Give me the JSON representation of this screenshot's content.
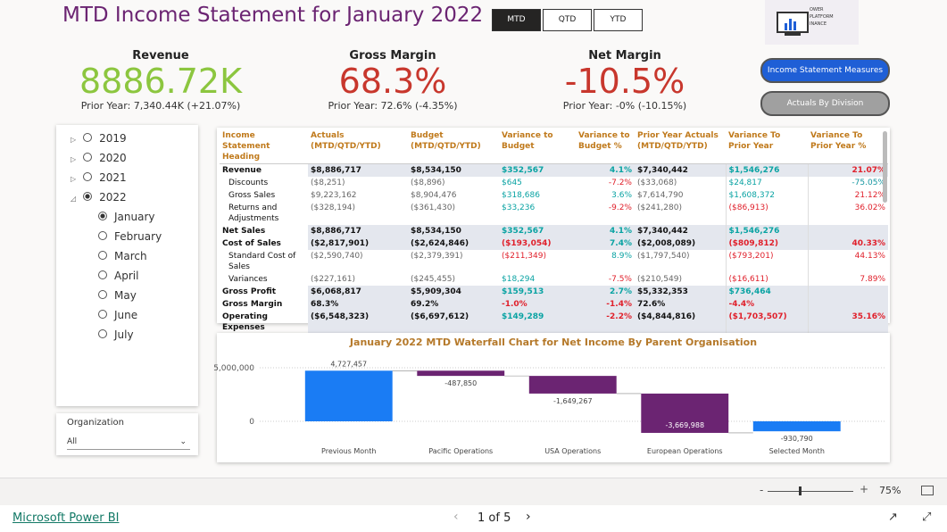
{
  "header": {
    "title": "MTD Income Statement for January 2022"
  },
  "period_buttons": {
    "items": [
      "MTD",
      "QTD",
      "YTD"
    ],
    "active_index": 0
  },
  "logo_text": [
    "OWER",
    "PLATFORM",
    "INANCE"
  ],
  "kpis": [
    {
      "title": "Revenue",
      "value": "8886.72K",
      "prior": "Prior Year: 7,340.44K (+21.07%)",
      "color": "#8cc63f"
    },
    {
      "title": "Gross Margin",
      "value": "68.3%",
      "prior": "Prior Year: 72.6% (-4.35%)",
      "color": "#c8372d"
    },
    {
      "title": "Net Margin",
      "value": "-10.5%",
      "prior": "Prior Year: -0% (-10.15%)",
      "color": "#c8372d"
    }
  ],
  "nav_buttons": [
    {
      "label": "Income Statement Measures",
      "color": "#1f5fd6"
    },
    {
      "label": "Actuals By Division",
      "color": "#a0a0a0"
    }
  ],
  "slicer": {
    "years": [
      "2019",
      "2020",
      "2021",
      "2022"
    ],
    "expanded_index": 3,
    "months": [
      "January",
      "February",
      "March",
      "April",
      "May",
      "June",
      "July"
    ],
    "selected_month_index": 0
  },
  "organization": {
    "title": "Organization",
    "value": "All"
  },
  "table": {
    "columns": [
      "Income Statement Heading",
      "Actuals (MTD/QTD/YTD)",
      "Budget (MTD/QTD/YTD)",
      "Variance to Budget",
      "Variance to Budget %",
      "Prior Year Actuals (MTD/QTD/YTD)",
      "Variance To Prior Year",
      "Variance To Prior Year %"
    ],
    "rows": [
      {
        "bold": true,
        "cells": [
          "Revenue",
          "$8,886,717",
          "$8,534,150",
          "$352,567",
          "4.1%",
          "$7,340,442",
          "$1,546,276",
          "21.07%"
        ]
      },
      {
        "bold": false,
        "cells": [
          "Discounts",
          "($8,251)",
          "($8,896)",
          "$645",
          "-7.2%",
          "($33,068)",
          "$24,817",
          "-75.05%"
        ]
      },
      {
        "bold": false,
        "cells": [
          "Gross Sales",
          "$9,223,162",
          "$8,904,476",
          "$318,686",
          "3.6%",
          "$7,614,790",
          "$1,608,372",
          "21.12%"
        ]
      },
      {
        "bold": false,
        "cells": [
          "Returns and Adjustments",
          "($328,194)",
          "($361,430)",
          "$33,236",
          "-9.2%",
          "($241,280)",
          "($86,913)",
          "36.02%"
        ]
      },
      {
        "bold": true,
        "cells": [
          "Net Sales",
          "$8,886,717",
          "$8,534,150",
          "$352,567",
          "4.1%",
          "$7,340,442",
          "$1,546,276",
          null
        ]
      },
      {
        "bold": true,
        "cells": [
          "Cost of Sales",
          "($2,817,901)",
          "($2,624,846)",
          "($193,054)",
          "7.4%",
          "($2,008,089)",
          "($809,812)",
          "40.33%"
        ]
      },
      {
        "bold": false,
        "cells": [
          "Standard Cost of Sales",
          "($2,590,740)",
          "($2,379,391)",
          "($211,349)",
          "8.9%",
          "($1,797,540)",
          "($793,201)",
          "44.13%"
        ]
      },
      {
        "bold": false,
        "cells": [
          "Variances",
          "($227,161)",
          "($245,455)",
          "$18,294",
          "-7.5%",
          "($210,549)",
          "($16,611)",
          "7.89%"
        ]
      },
      {
        "bold": true,
        "cells": [
          "Gross Profit",
          "$6,068,817",
          "$5,909,304",
          "$159,513",
          "2.7%",
          "$5,332,353",
          "$736,464",
          null
        ]
      },
      {
        "bold": true,
        "cells": [
          "Gross Margin",
          "68.3%",
          "69.2%",
          "-1.0%",
          "-1.4%",
          "72.6%",
          "-4.4%",
          null
        ]
      },
      {
        "bold": true,
        "cells": [
          "Operating Expenses",
          "($6,548,323)",
          "($6,697,612)",
          "$149,289",
          "-2.2%",
          "($4,844,816)",
          "($1,703,507)",
          "35.16%"
        ]
      }
    ]
  },
  "chart_data": {
    "type": "waterfall",
    "title": "January 2022 MTD Waterfall Chart for Net Income By Parent Organisation",
    "categories": [
      "Previous Month",
      "Pacific Operations",
      "USA Operations",
      "European Operations",
      "Selected Month"
    ],
    "values": [
      4727457,
      -487850,
      -1649267,
      -3669988,
      -930790
    ],
    "value_labels": [
      "4,727,457",
      "-487,850",
      "-1,649,267",
      "-3,669,988",
      "-930,790"
    ],
    "increase_color": "#1a7cf4",
    "decrease_color": "#6b2472",
    "total_color": "#1a7cf4",
    "ylim": [
      -2400000,
      7000000
    ],
    "yticks": [
      {
        "value": 5000000,
        "label": "5,000,000"
      },
      0
    ],
    "grid": true
  },
  "footer": {
    "brand": "Microsoft Power BI",
    "page": "1 of 5",
    "zoom": "75%"
  }
}
